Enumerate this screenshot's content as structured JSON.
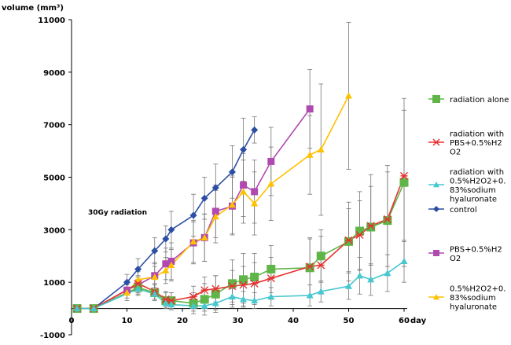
{
  "chart_data": {
    "type": "line",
    "title": "",
    "ylabel": "volume (mm³)",
    "xlabel": "day",
    "xlim": [
      0,
      60
    ],
    "ylim": [
      -1000,
      11000
    ],
    "x_ticks": [
      0,
      10,
      20,
      30,
      40,
      50,
      60
    ],
    "y_ticks": [
      -1000,
      1000,
      3000,
      5000,
      7000,
      9000,
      11000
    ],
    "x_tick_labels": [
      "0",
      "10",
      "20",
      "30",
      "40",
      "50",
      "60"
    ],
    "y_tick_labels": [
      "-1000",
      "1000",
      "3000",
      "5000",
      "7000",
      "9000",
      "11000"
    ],
    "annotation": "30Gy radiation",
    "grid": false,
    "legend_position": "right",
    "series": [
      {
        "name": "radiation alone",
        "color": "#5fb548",
        "marker": "square",
        "x": [
          1,
          4,
          12,
          15,
          17,
          18,
          22,
          24,
          26,
          29,
          31,
          33,
          36,
          43,
          45,
          50,
          52,
          54,
          57,
          60
        ],
        "y": [
          0,
          0,
          800,
          600,
          300,
          300,
          200,
          350,
          550,
          950,
          1100,
          1200,
          1500,
          1550,
          2000,
          2550,
          2950,
          3100,
          3350,
          4800
        ],
        "err": [
          0,
          0,
          300,
          300,
          300,
          300,
          400,
          600,
          700,
          900,
          1000,
          900,
          900,
          1100,
          1000,
          1500,
          1500,
          2000,
          2100,
          3200
        ]
      },
      {
        "name": "radiation with PBS+0.5%H2O2",
        "color": "#e8302e",
        "marker": "asterisk",
        "x": [
          1,
          4,
          12,
          15,
          17,
          18,
          22,
          24,
          26,
          29,
          31,
          33,
          36,
          43,
          45,
          50,
          52,
          54,
          57,
          60
        ],
        "y": [
          0,
          0,
          950,
          650,
          350,
          300,
          450,
          700,
          750,
          850,
          900,
          950,
          1150,
          1600,
          1650,
          2600,
          2800,
          3150,
          3400,
          5050
        ],
        "err": [
          0,
          0,
          300,
          300,
          300,
          300,
          400,
          500,
          500,
          600,
          700,
          800,
          800,
          1100,
          1100,
          1200,
          1300,
          1500,
          1800,
          2500
        ]
      },
      {
        "name": "radiation with 0.5%H2O2+0.83%sodium hyaluronate",
        "color": "#47c7cf",
        "marker": "triangle",
        "x": [
          1,
          4,
          12,
          15,
          17,
          18,
          22,
          24,
          26,
          29,
          31,
          33,
          36,
          43,
          45,
          50,
          52,
          54,
          57,
          60
        ],
        "y": [
          0,
          0,
          750,
          550,
          200,
          150,
          100,
          100,
          200,
          450,
          350,
          300,
          450,
          500,
          650,
          850,
          1250,
          1100,
          1350,
          1800
        ],
        "err": [
          0,
          0,
          200,
          200,
          200,
          200,
          200,
          200,
          250,
          300,
          300,
          300,
          350,
          400,
          400,
          500,
          700,
          600,
          700,
          800
        ]
      },
      {
        "name": "control",
        "color": "#2c4fa3",
        "marker": "diamond",
        "x": [
          1,
          4,
          10,
          12,
          15,
          17,
          18,
          22,
          24,
          26,
          29,
          31,
          33
        ],
        "y": [
          0,
          0,
          1000,
          1500,
          2200,
          2650,
          3000,
          3550,
          4200,
          4600,
          5200,
          6050,
          6800
        ],
        "err": [
          0,
          0,
          300,
          400,
          500,
          500,
          700,
          800,
          800,
          900,
          1000,
          1200,
          500
        ]
      },
      {
        "name": "PBS+0.5%H2O2",
        "color": "#b04ab0",
        "marker": "square",
        "x": [
          1,
          4,
          10,
          12,
          15,
          17,
          18,
          22,
          24,
          26,
          29,
          31,
          33,
          36,
          43
        ],
        "y": [
          0,
          0,
          700,
          900,
          1250,
          1700,
          1800,
          2500,
          2700,
          3700,
          3900,
          4700,
          4450,
          5600,
          7600
        ],
        "err": [
          0,
          0,
          300,
          300,
          500,
          600,
          700,
          800,
          900,
          1000,
          1100,
          1200,
          1200,
          1300,
          1500
        ]
      },
      {
        "name": "0.5%H2O2+0.83%sodium hyaluronate",
        "color": "#ffc000",
        "marker": "triangle",
        "x": [
          1,
          4,
          10,
          12,
          15,
          17,
          18,
          22,
          24,
          26,
          29,
          31,
          33,
          36,
          43,
          45,
          50
        ],
        "y": [
          0,
          0,
          600,
          1100,
          1200,
          1450,
          1650,
          2550,
          2700,
          3500,
          3950,
          4450,
          4000,
          4750,
          5850,
          6050,
          8100
        ],
        "err": [
          0,
          0,
          300,
          300,
          400,
          500,
          600,
          800,
          900,
          1000,
          1100,
          1200,
          1200,
          1400,
          1500,
          2500,
          2800
        ]
      }
    ],
    "legend": [
      {
        "series": 0,
        "lines": [
          "radiation alone"
        ]
      },
      {
        "series": 1,
        "lines": [
          "radiation with",
          "PBS+0.5%H2",
          "O2"
        ]
      },
      {
        "series": 2,
        "lines": [
          "radiation with",
          "0.5%H2O2+0.",
          "83%sodium",
          "hyaluronate"
        ]
      },
      {
        "series": 3,
        "lines": [
          "control"
        ]
      },
      {
        "series": 4,
        "lines": [
          "PBS+0.5%H2",
          "O2"
        ]
      },
      {
        "series": 5,
        "lines": [
          "0.5%H2O2+0.",
          "83%sodium",
          "hyaluronate"
        ]
      }
    ]
  }
}
